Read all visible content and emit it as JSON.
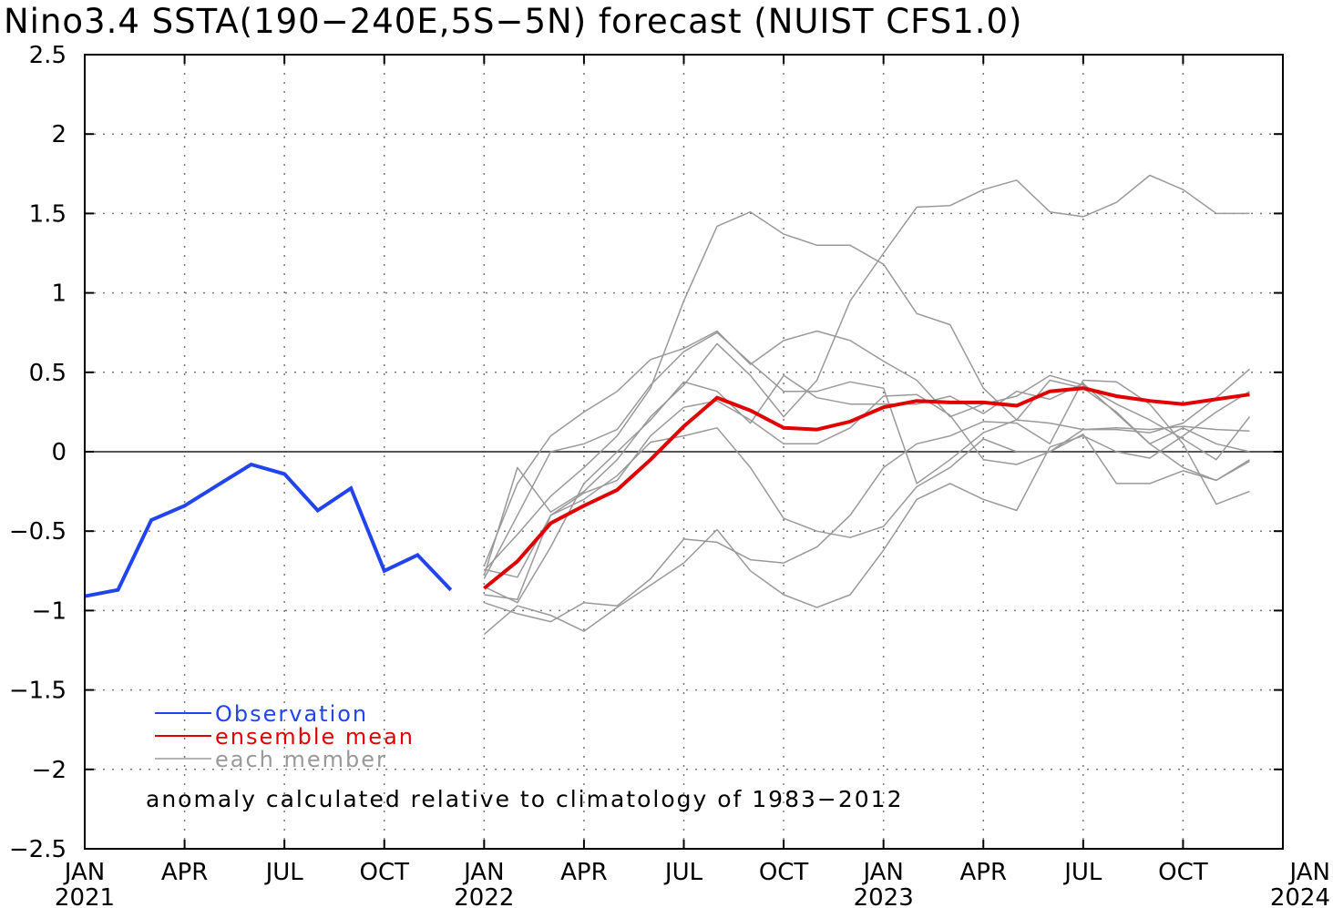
{
  "chart_data": {
    "type": "line",
    "title": "Nino3.4 SSTA(190−240E,5S−5N) forecast (NUIST CFS1.0)",
    "xlim": [
      "2021-01",
      "2024-01"
    ],
    "ylim": [
      -2.5,
      2.5
    ],
    "yticks": [
      {
        "value": 2.5,
        "label": "2.5"
      },
      {
        "value": 2,
        "label": "2"
      },
      {
        "value": 1.5,
        "label": "1.5"
      },
      {
        "value": 1,
        "label": "1"
      },
      {
        "value": 0.5,
        "label": "0.5"
      },
      {
        "value": 0,
        "label": "0"
      },
      {
        "value": -0.5,
        "label": "−0.5"
      },
      {
        "value": -1,
        "label": "−1"
      },
      {
        "value": -1.5,
        "label": "−1.5"
      },
      {
        "value": -2,
        "label": "−2"
      },
      {
        "value": -2.5,
        "label": "−2.5"
      }
    ],
    "xticks": [
      {
        "date": "2021-01",
        "label": "JAN",
        "year": "2021"
      },
      {
        "date": "2021-04",
        "label": "APR",
        "year": ""
      },
      {
        "date": "2021-07",
        "label": "JUL",
        "year": ""
      },
      {
        "date": "2021-10",
        "label": "OCT",
        "year": ""
      },
      {
        "date": "2022-01",
        "label": "JAN",
        "year": "2022"
      },
      {
        "date": "2022-04",
        "label": "APR",
        "year": ""
      },
      {
        "date": "2022-07",
        "label": "JUL",
        "year": ""
      },
      {
        "date": "2022-10",
        "label": "OCT",
        "year": ""
      },
      {
        "date": "2023-01",
        "label": "JAN",
        "year": "2023"
      },
      {
        "date": "2023-04",
        "label": "APR",
        "year": ""
      },
      {
        "date": "2023-07",
        "label": "JUL",
        "year": ""
      },
      {
        "date": "2023-10",
        "label": "OCT",
        "year": ""
      },
      {
        "date": "2024-01",
        "label": "JAN",
        "year": "2024"
      }
    ],
    "grid": true,
    "legend": {
      "placement": "bottom-left",
      "entries": [
        {
          "label": "Observation",
          "color": "#2244ee"
        },
        {
          "label": "ensemble mean",
          "color": "#e00000"
        },
        {
          "label": "each member",
          "color": "#999999"
        }
      ]
    },
    "annotation": "anomaly calculated relative to climatology of 1983−2012",
    "observation": {
      "name": "Observation",
      "color": "#2244ee",
      "x": [
        "2021-01",
        "2021-02",
        "2021-03",
        "2021-04",
        "2021-05",
        "2021-06",
        "2021-07",
        "2021-08",
        "2021-09",
        "2021-10",
        "2021-11",
        "2021-12"
      ],
      "values": [
        -0.91,
        -0.87,
        -0.43,
        -0.34,
        -0.21,
        -0.08,
        -0.14,
        -0.37,
        -0.23,
        -0.75,
        -0.65,
        -0.87
      ]
    },
    "ensemble_mean": {
      "name": "ensemble mean",
      "color": "#e00000",
      "x": [
        "2022-01",
        "2022-02",
        "2022-03",
        "2022-04",
        "2022-05",
        "2022-06",
        "2022-07",
        "2022-08",
        "2022-09",
        "2022-10",
        "2022-11",
        "2022-12",
        "2023-01",
        "2023-02",
        "2023-03",
        "2023-04",
        "2023-05",
        "2023-06",
        "2023-07",
        "2023-08",
        "2023-09",
        "2023-10",
        "2023-11",
        "2023-12"
      ],
      "values": [
        -0.86,
        -0.69,
        -0.45,
        -0.34,
        -0.24,
        -0.05,
        0.16,
        0.34,
        0.26,
        0.15,
        0.14,
        0.19,
        0.28,
        0.32,
        0.31,
        0.31,
        0.29,
        0.38,
        0.4,
        0.35,
        0.32,
        0.3,
        0.33,
        0.36
      ]
    },
    "members": {
      "name": "each member",
      "color": "#999999",
      "x": [
        "2022-01",
        "2022-02",
        "2022-03",
        "2022-04",
        "2022-05",
        "2022-06",
        "2022-07",
        "2022-08",
        "2022-09",
        "2022-10",
        "2022-11",
        "2022-12",
        "2023-01",
        "2023-02",
        "2023-03",
        "2023-04",
        "2023-05",
        "2023-06",
        "2023-07",
        "2023-08",
        "2023-09",
        "2023-10",
        "2023-11",
        "2023-12"
      ],
      "series": [
        {
          "values": [
            -0.75,
            -0.52,
            -0.28,
            -0.1,
            0.1,
            0.4,
            0.95,
            1.42,
            1.51,
            1.37,
            1.3,
            1.3,
            1.18,
            0.87,
            0.8,
            0.4,
            0.2,
            0.45,
            0.4,
            0.25,
            0.05,
            -0.1,
            -0.18,
            -0.05
          ]
        },
        {
          "values": [
            -0.72,
            -0.2,
            0.1,
            0.25,
            0.38,
            0.58,
            0.65,
            0.76,
            0.55,
            0.7,
            0.76,
            0.7,
            0.57,
            0.45,
            0.22,
            0.3,
            0.35,
            0.48,
            0.42,
            0.3,
            0.2,
            0.08,
            -0.05,
            0.22
          ]
        },
        {
          "values": [
            -0.8,
            -0.4,
            0.0,
            0.05,
            0.14,
            0.42,
            0.63,
            0.75,
            0.56,
            0.38,
            0.38,
            0.44,
            0.4,
            -0.2,
            -0.05,
            0.12,
            0.2,
            0.18,
            0.14,
            0.15,
            0.14,
            0.16,
            0.14,
            0.13
          ]
        },
        {
          "values": [
            -0.78,
            -0.1,
            -0.38,
            -0.25,
            -0.05,
            0.22,
            0.42,
            0.68,
            0.48,
            0.22,
            0.45,
            0.95,
            1.25,
            1.54,
            1.55,
            1.65,
            1.71,
            1.51,
            1.48,
            1.57,
            1.74,
            1.65,
            1.5,
            1.5
          ]
        },
        {
          "values": [
            -0.85,
            -0.95,
            -0.6,
            -0.2,
            0.0,
            0.2,
            0.44,
            0.38,
            0.18,
            0.48,
            0.34,
            0.3,
            0.3,
            0.3,
            0.35,
            0.24,
            0.38,
            0.33,
            0.43,
            0.24,
            0.05,
            0.15,
            0.05,
            0.0
          ]
        },
        {
          "values": [
            -0.9,
            -0.93,
            -0.4,
            -0.3,
            -0.15,
            0.06,
            0.1,
            0.15,
            -0.1,
            -0.42,
            -0.5,
            -0.54,
            -0.47,
            -0.22,
            -0.1,
            0.08,
            0.0,
            0.0,
            0.14,
            0.14,
            0.12,
            0.18,
            0.34,
            0.52
          ]
        },
        {
          "values": [
            -0.95,
            -1.02,
            -1.07,
            -0.95,
            -0.97,
            -0.8,
            -0.55,
            -0.57,
            -0.68,
            -0.7,
            -0.6,
            -0.4,
            -0.1,
            0.05,
            0.1,
            0.19,
            0.18,
            0.05,
            0.45,
            0.44,
            0.3,
            0.05,
            -0.33,
            -0.25
          ]
        },
        {
          "values": [
            -1.15,
            -0.97,
            -1.03,
            -1.13,
            -0.98,
            -0.84,
            -0.7,
            -0.49,
            -0.75,
            -0.9,
            -0.98,
            -0.9,
            -0.62,
            -0.3,
            -0.2,
            -0.3,
            -0.37,
            0.03,
            0.1,
            0.0,
            -0.04,
            0.1,
            0.25,
            0.38
          ]
        },
        {
          "values": [
            -0.74,
            -0.79,
            -0.4,
            -0.26,
            -0.18,
            0.1,
            0.28,
            0.32,
            0.2,
            0.05,
            0.05,
            0.15,
            0.35,
            0.36,
            0.23,
            -0.05,
            -0.08,
            0.0,
            0.11,
            -0.2,
            -0.2,
            -0.12,
            -0.18,
            -0.06
          ]
        }
      ]
    }
  }
}
